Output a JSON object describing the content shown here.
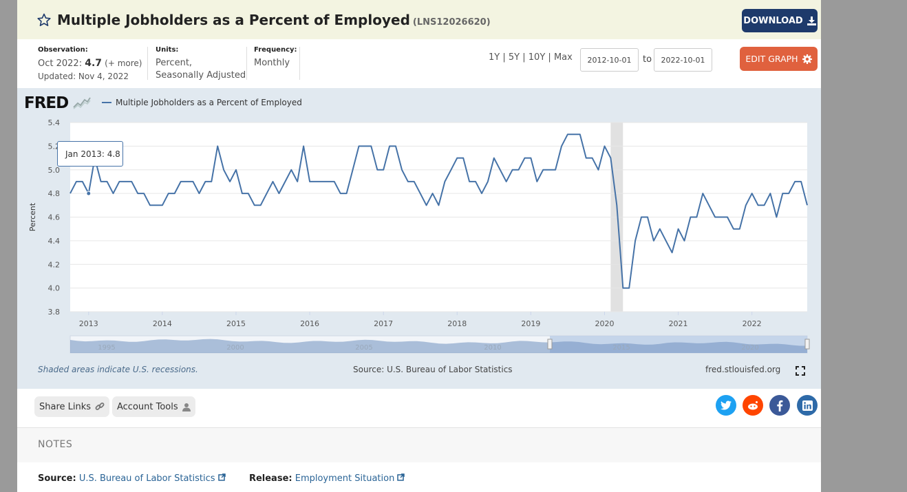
{
  "header": {
    "title": "Multiple Jobholders as a Percent of Employed",
    "series_id": "(LNS12026620)",
    "download_label": "DOWNLOAD"
  },
  "meta": {
    "observation_label": "Observation:",
    "observation_period": "Oct 2022:",
    "observation_value": "4.7",
    "observation_more": "(+ more)",
    "updated": "Updated: Nov 4, 2022",
    "units_label": "Units:",
    "units_line1": "Percent,",
    "units_line2": "Seasonally Adjusted",
    "frequency_label": "Frequency:",
    "frequency_value": "Monthly"
  },
  "controls": {
    "range_1y": "1Y",
    "range_5y": "5Y",
    "range_10y": "10Y",
    "range_max": "Max",
    "separator": "|",
    "start_date": "2012-10-01",
    "to_label": "to",
    "end_date": "2022-10-01",
    "edit_graph_label": "EDIT GRAPH"
  },
  "chart_area": {
    "logo": "FRED",
    "legend_label": "Multiple Jobholders as a Percent of Employed",
    "tooltip": "Jan 2013: 4.8",
    "recession_note": "Shaded areas indicate U.S. recessions.",
    "source_note": "Source: U.S. Bureau of Labor Statistics",
    "fred_url": "fred.stlouisfed.org"
  },
  "chart_data": {
    "type": "line",
    "ylabel": "Percent",
    "ylim": [
      3.8,
      5.4
    ],
    "yticks": [
      "5.4",
      "5.2",
      "5.0",
      "4.8",
      "4.6",
      "4.4",
      "4.2",
      "4.0",
      "3.8"
    ],
    "xticks": [
      "2013",
      "2014",
      "2015",
      "2016",
      "2017",
      "2018",
      "2019",
      "2020",
      "2021",
      "2022"
    ],
    "navigator_labels": [
      "1995",
      "2000",
      "2005",
      "2010",
      "2015",
      "2020"
    ],
    "x_start": "2012-10",
    "x_end": "2022-10",
    "recession": {
      "start": "2020-02",
      "end": "2020-04"
    },
    "grid": true,
    "series": [
      {
        "name": "Multiple Jobholders as a Percent of Employed",
        "color": "#4572a7",
        "values": [
          4.8,
          4.9,
          4.9,
          4.8,
          5.1,
          4.9,
          4.9,
          4.8,
          4.9,
          4.9,
          4.9,
          4.8,
          4.8,
          4.7,
          4.7,
          4.7,
          4.8,
          4.8,
          4.9,
          4.9,
          4.9,
          4.8,
          4.9,
          4.9,
          5.2,
          5.0,
          4.9,
          5.0,
          4.8,
          4.8,
          4.7,
          4.7,
          4.8,
          4.9,
          4.8,
          4.9,
          5.0,
          4.9,
          5.2,
          4.9,
          4.9,
          4.9,
          4.9,
          4.9,
          4.8,
          4.8,
          5.0,
          5.2,
          5.2,
          5.2,
          5.0,
          5.0,
          5.2,
          5.2,
          5.0,
          4.9,
          4.9,
          4.8,
          4.7,
          4.8,
          4.7,
          4.9,
          5.0,
          5.1,
          5.1,
          4.9,
          4.9,
          4.8,
          4.9,
          5.1,
          5.0,
          4.9,
          5.0,
          5.0,
          5.1,
          5.1,
          4.9,
          5.0,
          5.0,
          5.0,
          5.2,
          5.3,
          5.3,
          5.3,
          5.1,
          5.1,
          5.0,
          5.2,
          5.1,
          4.7,
          4.0,
          4.0,
          4.4,
          4.6,
          4.6,
          4.4,
          4.5,
          4.4,
          4.3,
          4.5,
          4.4,
          4.6,
          4.6,
          4.8,
          4.7,
          4.6,
          4.6,
          4.6,
          4.5,
          4.5,
          4.7,
          4.8,
          4.7,
          4.7,
          4.8,
          4.6,
          4.8,
          4.8,
          4.9,
          4.9,
          4.7
        ]
      }
    ]
  },
  "share": {
    "share_links_label": "Share Links",
    "account_tools_label": "Account Tools",
    "twitter_color": "#1da1f2",
    "reddit_color": "#ff4500",
    "facebook_color": "#3b5998",
    "linkedin_color": "#2e6aa8"
  },
  "notes": {
    "title": "NOTES",
    "source_label": "Source:",
    "source_value": "U.S. Bureau of Labor Statistics",
    "release_label": "Release:",
    "release_value": "Employment Situation"
  }
}
